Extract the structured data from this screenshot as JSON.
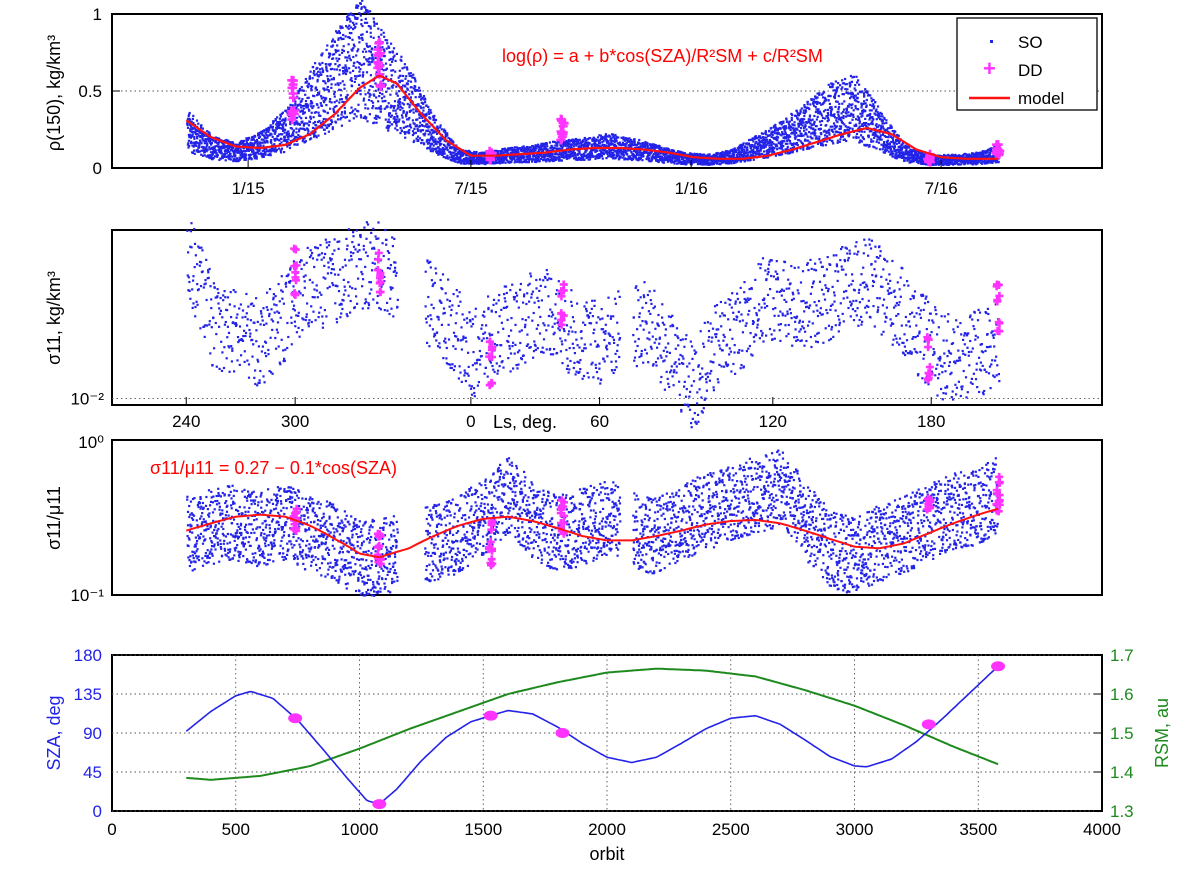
{
  "chart_data": [
    {
      "panel": "top",
      "type": "scatter+line",
      "ylabel": "ρ(150), kg/km³",
      "ylim": [
        0,
        1
      ],
      "yticks": [
        "0",
        "0.5",
        "1"
      ],
      "xticks": [
        "1/15",
        "7/15",
        "1/16",
        "7/16"
      ],
      "xtick_pos_orbit": [
        550,
        1450,
        2340,
        3350
      ],
      "xlim_orbit": [
        0,
        4000
      ],
      "equation": "log(ρ) = a + b*cos(SZA)/R²SM + c/R²SM",
      "legend": {
        "placement": "top-right",
        "entries": [
          "SO",
          "DD",
          "model"
        ]
      },
      "grid": "y-dotted at 0.5",
      "series": [
        {
          "name": "SO",
          "style": "blue dots",
          "x": [
            300,
            400,
            500,
            600,
            700,
            800,
            900,
            1000,
            1080,
            1200,
            1300,
            1400,
            1500,
            1600,
            1700,
            1800,
            1900,
            2000,
            2100,
            2200,
            2300,
            2400,
            2500,
            2600,
            2700,
            2800,
            2900,
            3000,
            3100,
            3200,
            3300,
            3400,
            3500,
            3580
          ],
          "y": [
            0.25,
            0.14,
            0.11,
            0.16,
            0.25,
            0.42,
            0.58,
            0.72,
            0.6,
            0.42,
            0.22,
            0.08,
            0.07,
            0.09,
            0.1,
            0.12,
            0.13,
            0.15,
            0.13,
            0.1,
            0.07,
            0.06,
            0.08,
            0.14,
            0.2,
            0.28,
            0.36,
            0.4,
            0.25,
            0.1,
            0.06,
            0.06,
            0.07,
            0.1
          ]
        },
        {
          "name": "DD",
          "style": "magenta plus",
          "x": [
            730,
            1080,
            1530,
            1820,
            3300,
            3580
          ],
          "y": [
            0.45,
            0.66,
            0.08,
            0.25,
            0.06,
            0.13
          ],
          "spread": [
            0.14,
            0.16,
            0.03,
            0.08,
            0.03,
            0.06
          ]
        },
        {
          "name": "model",
          "style": "red line",
          "x": [
            300,
            400,
            500,
            600,
            700,
            800,
            900,
            1000,
            1080,
            1150,
            1250,
            1350,
            1450,
            1550,
            1650,
            1750,
            1850,
            1950,
            2050,
            2150,
            2250,
            2350,
            2450,
            2550,
            2650,
            2750,
            2850,
            2950,
            3050,
            3150,
            3250,
            3350,
            3450,
            3580
          ],
          "y": [
            0.31,
            0.2,
            0.14,
            0.13,
            0.15,
            0.22,
            0.35,
            0.52,
            0.6,
            0.55,
            0.35,
            0.18,
            0.08,
            0.08,
            0.09,
            0.1,
            0.12,
            0.13,
            0.13,
            0.12,
            0.1,
            0.07,
            0.06,
            0.06,
            0.08,
            0.12,
            0.17,
            0.22,
            0.26,
            0.22,
            0.12,
            0.07,
            0.06,
            0.06
          ]
        }
      ]
    },
    {
      "panel": "second",
      "type": "scatter",
      "ylabel": "σ11, kg/km³",
      "yscale": "log",
      "ylim": [
        0.009,
        0.16
      ],
      "yticks": [
        "10⁻²"
      ],
      "xlabel": "Ls, deg.",
      "xticks": [
        "240",
        "300",
        "0",
        "60",
        "120",
        "180"
      ],
      "xtick_pos_orbit": [
        300,
        740,
        1450,
        1970,
        2670,
        3310
      ],
      "series": [
        {
          "name": "SO",
          "style": "blue dots",
          "x": [
            300,
            400,
            500,
            600,
            700,
            800,
            900,
            1000,
            1080,
            1200,
            1300,
            1450,
            1550,
            1650,
            1750,
            1850,
            1950,
            2050,
            2150,
            2250,
            2350,
            2450,
            2550,
            2650,
            2750,
            2850,
            2950,
            3050,
            3150,
            3250,
            3350,
            3450,
            3580
          ],
          "y": [
            0.1,
            0.035,
            0.03,
            0.025,
            0.04,
            0.065,
            0.07,
            0.09,
            0.09,
            0.065,
            0.045,
            0.02,
            0.03,
            0.035,
            0.045,
            0.03,
            0.025,
            0.03,
            0.035,
            0.02,
            0.012,
            0.025,
            0.035,
            0.055,
            0.045,
            0.05,
            0.06,
            0.07,
            0.05,
            0.03,
            0.02,
            0.02,
            0.025
          ]
        },
        {
          "name": "DD",
          "style": "magenta plus",
          "x": [
            740,
            1080,
            1530,
            1820,
            3300,
            3580
          ],
          "y": [
            0.08,
            0.08,
            0.018,
            0.05,
            0.02,
            0.045
          ]
        }
      ]
    },
    {
      "panel": "third",
      "type": "scatter+line",
      "ylabel": "σ11/μ11",
      "yscale": "log",
      "ylim": [
        0.1,
        1.0
      ],
      "yticks": [
        "10⁰",
        "10⁻¹"
      ],
      "equation": "σ11/μ11 = 0.27 − 0.1*cos(SZA)",
      "series": [
        {
          "name": "SO",
          "style": "blue dots",
          "x": [
            300,
            400,
            500,
            600,
            700,
            800,
            900,
            1000,
            1080,
            1200,
            1300,
            1400,
            1530,
            1600,
            1700,
            1800,
            1900,
            2000,
            2100,
            2200,
            2300,
            2400,
            2500,
            2600,
            2700,
            2800,
            2900,
            3000,
            3100,
            3200,
            3300,
            3400,
            3500,
            3580
          ],
          "y": [
            0.25,
            0.28,
            0.3,
            0.27,
            0.3,
            0.25,
            0.22,
            0.17,
            0.18,
            0.2,
            0.22,
            0.25,
            0.35,
            0.45,
            0.3,
            0.25,
            0.28,
            0.32,
            0.27,
            0.24,
            0.3,
            0.35,
            0.4,
            0.45,
            0.5,
            0.3,
            0.2,
            0.18,
            0.22,
            0.25,
            0.3,
            0.35,
            0.38,
            0.45
          ]
        },
        {
          "name": "DD",
          "style": "magenta plus",
          "x": [
            740,
            1080,
            1530,
            1820,
            3300,
            3580
          ],
          "y": [
            0.3,
            0.2,
            0.22,
            0.32,
            0.38,
            0.45
          ],
          "spread_factor": [
            1.2,
            1.35,
            1.45,
            1.35,
            1.1,
            1.3
          ]
        },
        {
          "name": "model",
          "style": "red line",
          "x": [
            300,
            400,
            500,
            600,
            700,
            800,
            900,
            1000,
            1080,
            1200,
            1300,
            1400,
            1500,
            1600,
            1700,
            1800,
            1900,
            2000,
            2100,
            2200,
            2300,
            2400,
            2500,
            2600,
            2700,
            2800,
            2900,
            3000,
            3100,
            3200,
            3300,
            3400,
            3500,
            3580
          ],
          "y": [
            0.26,
            0.29,
            0.32,
            0.33,
            0.32,
            0.28,
            0.23,
            0.185,
            0.175,
            0.2,
            0.24,
            0.28,
            0.31,
            0.32,
            0.3,
            0.27,
            0.24,
            0.225,
            0.225,
            0.24,
            0.26,
            0.285,
            0.3,
            0.305,
            0.29,
            0.26,
            0.23,
            0.205,
            0.2,
            0.215,
            0.25,
            0.29,
            0.33,
            0.36
          ]
        }
      ]
    },
    {
      "panel": "bottom",
      "type": "line",
      "xlabel": "orbit",
      "xlim": [
        0,
        4000
      ],
      "xticks": [
        "0",
        "500",
        "1000",
        "1500",
        "2000",
        "2500",
        "3000",
        "3500",
        "4000"
      ],
      "ylabel_left": "SZA, deg",
      "ylim_left": [
        0,
        180
      ],
      "yticks_left": [
        "0",
        "45",
        "90",
        "135",
        "180"
      ],
      "ylabel_right": "RSM, au",
      "ylim_right": [
        1.3,
        1.7
      ],
      "yticks_right": [
        "1.3",
        "1.4",
        "1.5",
        "1.6",
        "1.7"
      ],
      "grid": "dotted",
      "colors": {
        "sza": "#2323e8",
        "rsm": "#1e8a1e",
        "dd": "#ff33ff"
      },
      "series": [
        {
          "name": "SZA",
          "axis": "left",
          "style": "blue line",
          "x": [
            300,
            400,
            500,
            560,
            650,
            750,
            850,
            950,
            1030,
            1080,
            1150,
            1250,
            1350,
            1450,
            1530,
            1600,
            1700,
            1800,
            1900,
            2000,
            2100,
            2200,
            2300,
            2400,
            2500,
            2600,
            2700,
            2800,
            2900,
            3000,
            3050,
            3150,
            3250,
            3350,
            3450,
            3580
          ],
          "y": [
            92,
            115,
            133,
            138,
            130,
            105,
            72,
            38,
            12,
            8,
            25,
            58,
            85,
            103,
            110,
            116,
            112,
            97,
            78,
            62,
            56,
            62,
            78,
            95,
            107,
            110,
            100,
            82,
            63,
            52,
            51,
            60,
            80,
            105,
            132,
            167
          ]
        },
        {
          "name": "RSM",
          "axis": "right",
          "style": "green line",
          "x": [
            300,
            400,
            600,
            800,
            1000,
            1200,
            1400,
            1600,
            1800,
            2000,
            2200,
            2400,
            2600,
            2800,
            3000,
            3200,
            3400,
            3580
          ],
          "y": [
            1.385,
            1.38,
            1.39,
            1.415,
            1.46,
            1.51,
            1.555,
            1.6,
            1.63,
            1.655,
            1.665,
            1.66,
            1.645,
            1.61,
            1.57,
            1.52,
            1.465,
            1.42
          ]
        },
        {
          "name": "DD",
          "axis": "left",
          "style": "magenta markers",
          "x": [
            740,
            1080,
            1530,
            1820,
            3300,
            3580
          ],
          "y": [
            107,
            8,
            110,
            90,
            100,
            167
          ]
        }
      ]
    }
  ]
}
